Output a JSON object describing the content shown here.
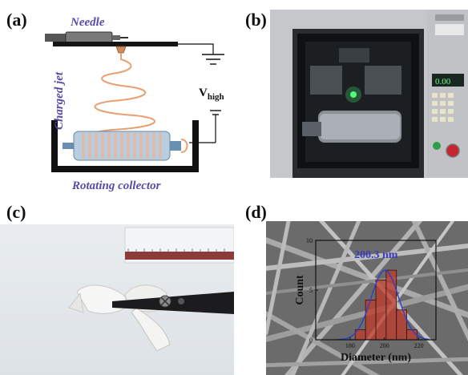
{
  "panels": {
    "a": {
      "letter": "(a)",
      "needle": "Needle",
      "jet": "Charged jet",
      "voltage_main": "V",
      "voltage_sub": "high",
      "collector": "Rotating collector"
    },
    "b": {
      "letter": "(b)",
      "display_readout": "0.00"
    },
    "c": {
      "letter": "(c)"
    },
    "d": {
      "letter": "(d)"
    }
  },
  "chart_data": {
    "type": "bar",
    "title": "200.3 nm",
    "xlabel": "Diameter (nm)",
    "ylabel": "Count",
    "xlim": [
      160,
      230
    ],
    "ylim": [
      0,
      10
    ],
    "x_ticks": [
      180,
      200,
      220
    ],
    "y_ticks": [
      0,
      5,
      10
    ],
    "bin_centers": [
      186,
      192,
      198,
      204,
      210,
      216
    ],
    "bin_width": 6,
    "values": [
      1,
      4,
      6,
      7,
      3,
      1
    ],
    "fit": {
      "type": "gaussian",
      "mean": 200.3,
      "sigma": 8,
      "peak": 7
    },
    "colors": {
      "bar": "#c0392b",
      "fit": "#2c3ec7",
      "label": "#3b3bbf"
    }
  }
}
